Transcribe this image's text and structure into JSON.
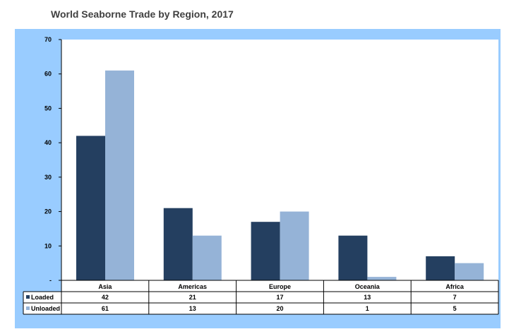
{
  "chart_data": {
    "type": "bar",
    "title": "World Seaborne Trade by Region, 2017",
    "categories": [
      "Asia",
      "Americas",
      "Europe",
      "Oceania",
      "Africa"
    ],
    "series": [
      {
        "name": "Loaded",
        "values": [
          42,
          21,
          17,
          13,
          7
        ],
        "color": "#243f60"
      },
      {
        "name": "Unloaded",
        "values": [
          61,
          13,
          20,
          1,
          5
        ],
        "color": "#95b3d7"
      }
    ],
    "table_values": [
      [
        "42",
        "21",
        "17",
        "13",
        "7"
      ],
      [
        "61",
        "13",
        "20",
        "1",
        "5"
      ]
    ],
    "yticks": [
      "-",
      "10",
      "20",
      "30",
      "40",
      "50",
      "60",
      "70"
    ],
    "ylim": [
      0,
      70
    ],
    "grid": false,
    "legend": "data-table"
  }
}
